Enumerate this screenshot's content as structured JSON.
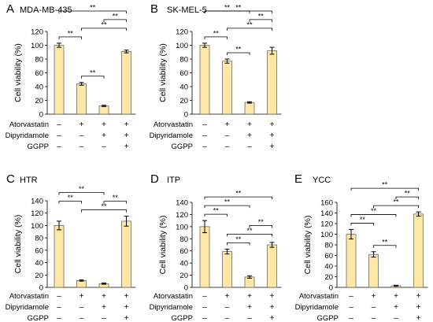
{
  "chart_data": [
    {
      "type": "bar",
      "panel": "A",
      "cell_line": "MDA-MB-435",
      "ylabel": "Cell viability (%)",
      "ylim": [
        0,
        120
      ],
      "yticks": [
        0,
        20,
        40,
        60,
        80,
        100,
        120
      ],
      "values": [
        100,
        44,
        12,
        91
      ],
      "errors": [
        3,
        2,
        1,
        2
      ],
      "significance": [
        {
          "from": 1,
          "to": 2,
          "label": "**"
        },
        {
          "from": 0,
          "to": 1,
          "label": "**"
        },
        {
          "from": 1,
          "to": 3,
          "label": "**"
        },
        {
          "from": 2,
          "to": 3,
          "label": "**"
        },
        {
          "from": 0,
          "to": 3,
          "label": "**"
        }
      ]
    },
    {
      "type": "bar",
      "panel": "B",
      "cell_line": "SK-MEL-5",
      "ylabel": "Cell viability (%)",
      "ylim": [
        0,
        120
      ],
      "yticks": [
        0,
        20,
        40,
        60,
        80,
        100,
        120
      ],
      "values": [
        100,
        77,
        17,
        92
      ],
      "errors": [
        3,
        3,
        1,
        5
      ],
      "significance": [
        {
          "from": 1,
          "to": 2,
          "label": "**"
        },
        {
          "from": 0,
          "to": 1,
          "label": "**"
        },
        {
          "from": 1,
          "to": 3,
          "label": "**"
        },
        {
          "from": 2,
          "to": 3,
          "label": "**"
        },
        {
          "from": 0,
          "to": 2,
          "label": "**"
        },
        {
          "from": 0,
          "to": 3,
          "label": "**"
        }
      ]
    },
    {
      "type": "bar",
      "panel": "C",
      "cell_line": "HTR",
      "ylabel": "Cell viability (%)",
      "ylim": [
        0,
        140
      ],
      "yticks": [
        0,
        20,
        40,
        60,
        80,
        100,
        120,
        140
      ],
      "values": [
        100,
        11,
        6,
        107
      ],
      "errors": [
        7,
        1,
        1,
        8
      ],
      "significance": [
        {
          "from": 1,
          "to": 3,
          "label": "**"
        },
        {
          "from": 0,
          "to": 1,
          "label": "**"
        },
        {
          "from": 2,
          "to": 3,
          "label": "**"
        },
        {
          "from": 0,
          "to": 2,
          "label": "**"
        }
      ]
    },
    {
      "type": "bar",
      "panel": "D",
      "cell_line": "ITP",
      "ylabel": "Cell viability (%)",
      "ylim": [
        0,
        140
      ],
      "yticks": [
        0,
        20,
        40,
        60,
        80,
        100,
        120,
        140
      ],
      "values": [
        100,
        59,
        17,
        70
      ],
      "errors": [
        10,
        4,
        2,
        4
      ],
      "significance": [
        {
          "from": 1,
          "to": 2,
          "label": "**"
        },
        {
          "from": 1,
          "to": 3,
          "label": "**"
        },
        {
          "from": 0,
          "to": 1,
          "label": "**"
        },
        {
          "from": 2,
          "to": 3,
          "label": "**"
        },
        {
          "from": 0,
          "to": 2,
          "label": "**"
        },
        {
          "from": 0,
          "to": 3,
          "label": "**"
        }
      ]
    },
    {
      "type": "bar",
      "panel": "E",
      "cell_line": "YCC",
      "ylabel": "Cell viability (%)",
      "ylim": [
        0,
        160
      ],
      "yticks": [
        0,
        20,
        40,
        60,
        80,
        100,
        120,
        140,
        160
      ],
      "values": [
        100,
        62,
        3,
        138
      ],
      "errors": [
        9,
        5,
        1,
        4
      ],
      "significance": [
        {
          "from": 1,
          "to": 2,
          "label": "**"
        },
        {
          "from": 0,
          "to": 1,
          "label": "**"
        },
        {
          "from": 0,
          "to": 2,
          "label": "**"
        },
        {
          "from": 1,
          "to": 3,
          "label": "**"
        },
        {
          "from": 2,
          "to": 3,
          "label": "**"
        },
        {
          "from": 0,
          "to": 3,
          "label": "**"
        }
      ]
    }
  ],
  "treatments": [
    {
      "label": "Atorvastatin",
      "signs": [
        "–",
        "+",
        "+",
        "+"
      ]
    },
    {
      "label": "Dipyridamole",
      "signs": [
        "–",
        "–",
        "+",
        "+"
      ]
    },
    {
      "label": "GGPP",
      "signs": [
        "–",
        "–",
        "–",
        "+"
      ]
    }
  ],
  "colors": {
    "bar_fill": "#FFE8A6",
    "bar_stroke": "#5A5A5A",
    "axis": "#000000"
  }
}
